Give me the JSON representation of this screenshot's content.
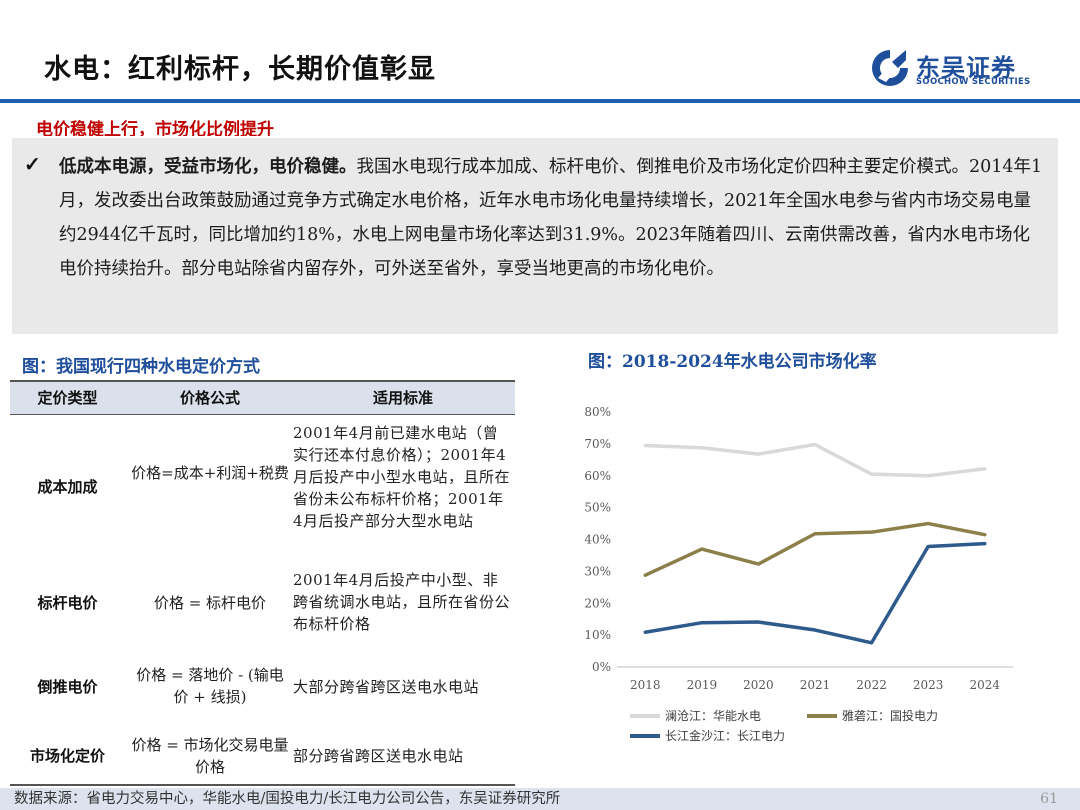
{
  "header": {
    "title": "水电：红利标杆，长期价值彰显",
    "logo_cn": "东吴证券",
    "logo_en": "SOOCHOW SECURITIES"
  },
  "section_subtitle": "电价稳健上行，市场化比例提升",
  "summary": {
    "lead": "低成本电源，受益市场化，电价稳健。",
    "body": "我国水电现行成本加成、标杆电价、倒推电价及市场化定价四种主要定价模式。2014年1月，发改委出台政策鼓励通过竞争方式确定水电价格，近年水电市场化电量持续增长，2021年全国水电参与省内市场交易电量约2944亿千瓦时，同比增加约18%，水电上网电量市场化率达到31.9%。2023年随着四川、云南供需改善，省内水电市场化电价持续抬升。部分电站除省内留存外，可外送至省外，享受当地更高的市场化电价。"
  },
  "table": {
    "title": "图：我国现行四种水电定价方式",
    "headers": [
      "定价类型",
      "价格公式",
      "适用标准"
    ],
    "rows": [
      {
        "type": "成本加成",
        "formula": "价格=成本+利润+税费",
        "standard": "2001年4月前已建水电站（曾实行还本付息价格）；2001年4月后投产中小型水电站，且所在省份未公布标杆价格；2001年4月后投产部分大型水电站"
      },
      {
        "type": "标杆电价",
        "formula": "价格 = 标杆电价",
        "standard": "2001年4月后投产中小型、非跨省统调水电站，且所在省份公布标杆价格"
      },
      {
        "type": "倒推电价",
        "formula": "价格 = 落地价 - (输电价 + 线损)",
        "standard": "大部分跨省跨区送电水电站"
      },
      {
        "type": "市场化定价",
        "formula": "价格 = 市场化交易电量价格",
        "standard": "部分跨省跨区送电水电站"
      }
    ]
  },
  "chart_title": "图：2018-2024年水电公司市场化率",
  "chart_data": {
    "type": "line",
    "categories": [
      "2018",
      "2019",
      "2020",
      "2021",
      "2022",
      "2023",
      "2024"
    ],
    "ylim": [
      0,
      80
    ],
    "yticks": [
      "0%",
      "10%",
      "20%",
      "30%",
      "40%",
      "50%",
      "60%",
      "70%",
      "80%"
    ],
    "grid": false,
    "legend_position": "bottom",
    "series": [
      {
        "name": "澜沧江：华能水电",
        "color": "#d9d9d9",
        "values": [
          69.5,
          68.8,
          66.8,
          69.8,
          60.5,
          60.0,
          62.2
        ]
      },
      {
        "name": "雅砻江：国投电力",
        "color": "#8c7f4a",
        "values": [
          28.8,
          37.0,
          32.3,
          41.8,
          42.3,
          45.0,
          41.5
        ]
      },
      {
        "name": "长江金沙江：长江电力",
        "color": "#2e5a8c",
        "values": [
          10.9,
          13.9,
          14.1,
          11.6,
          7.6,
          37.8,
          38.7
        ]
      }
    ]
  },
  "footer": {
    "source": "数据来源：省电力交易中心，华能水电/国投电力/长江电力公司公告，东吴证券研究所",
    "page": "61"
  }
}
